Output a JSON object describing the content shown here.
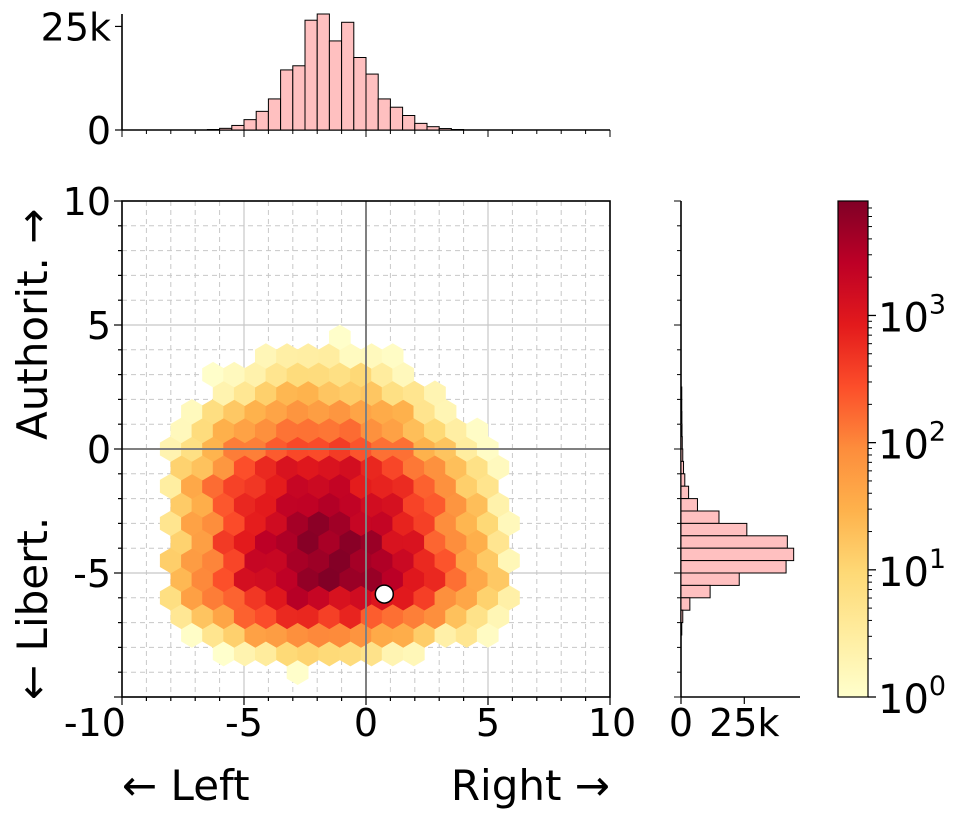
{
  "chart_data": {
    "type": "heatmap",
    "subtype": "hexbin-with-marginal-histograms",
    "xlabel_left": "← Left",
    "xlabel_right": "Right →",
    "ylabel_bottom": "← Libert.",
    "ylabel_top": "Authorit. →",
    "xlim": [
      -10,
      10
    ],
    "ylim": [
      -10,
      10
    ],
    "x_ticks": [
      {
        "value": -10,
        "label": "-10"
      },
      {
        "value": -5,
        "label": "-5"
      },
      {
        "value": 0,
        "label": "0"
      },
      {
        "value": 5,
        "label": "5"
      },
      {
        "value": 10,
        "label": "10"
      }
    ],
    "y_ticks": [
      {
        "value": -5,
        "label": "-5"
      },
      {
        "value": 0,
        "label": "0"
      },
      {
        "value": 5,
        "label": "5"
      },
      {
        "value": 10,
        "label": "10"
      }
    ],
    "grid": true,
    "quadrant_lines": true,
    "colormap": "YlOrRd",
    "color_scale": "log",
    "colorbar": {
      "min_exponent": 0,
      "max_exponent": 3.9,
      "ticks": [
        {
          "exp": 0,
          "base": "10",
          "power": "0"
        },
        {
          "exp": 1,
          "base": "10",
          "power": "1"
        },
        {
          "exp": 2,
          "base": "10",
          "power": "2"
        },
        {
          "exp": 3,
          "base": "10",
          "power": "3"
        }
      ]
    },
    "density": {
      "center": [
        -1.7,
        -4.6
      ],
      "log10_peak_count": 3.85,
      "spread_x": 2.2,
      "spread_y": 1.35,
      "tail_direction": [
        0.55,
        1.0
      ],
      "extent_x": [
        -8.0,
        6.0
      ],
      "extent_y": [
        -9.0,
        6.0
      ]
    },
    "marker": {
      "x": 0.75,
      "y": -5.85,
      "color": "#ffffff"
    },
    "top_histogram": {
      "ylim": [
        0,
        28000
      ],
      "y_ticks": [
        {
          "value": 0,
          "label": "0"
        },
        {
          "value": 25000,
          "label": "25k"
        }
      ],
      "bin_width": 0.5,
      "bins": [
        {
          "x": -6.5,
          "count": 120
        },
        {
          "x": -6.0,
          "count": 400
        },
        {
          "x": -5.5,
          "count": 1100
        },
        {
          "x": -5.0,
          "count": 2500
        },
        {
          "x": -4.5,
          "count": 4500
        },
        {
          "x": -4.0,
          "count": 7500
        },
        {
          "x": -3.5,
          "count": 14500
        },
        {
          "x": -3.0,
          "count": 15500
        },
        {
          "x": -2.5,
          "count": 26500
        },
        {
          "x": -2.0,
          "count": 28000
        },
        {
          "x": -1.5,
          "count": 21500
        },
        {
          "x": -1.0,
          "count": 26000
        },
        {
          "x": -0.5,
          "count": 17500
        },
        {
          "x": 0.0,
          "count": 13500
        },
        {
          "x": 0.5,
          "count": 7500
        },
        {
          "x": 1.0,
          "count": 5500
        },
        {
          "x": 1.5,
          "count": 3500
        },
        {
          "x": 2.0,
          "count": 1600
        },
        {
          "x": 2.5,
          "count": 800
        },
        {
          "x": 3.0,
          "count": 350
        },
        {
          "x": 3.5,
          "count": 120
        }
      ]
    },
    "right_histogram": {
      "xlim": [
        0,
        47000
      ],
      "x_ticks": [
        {
          "value": 0,
          "label": "0"
        },
        {
          "value": 25000,
          "label": "25k"
        }
      ],
      "bin_width": 0.5,
      "bins": [
        {
          "y": 2.0,
          "count": 300
        },
        {
          "y": 1.5,
          "count": 300
        },
        {
          "y": 1.0,
          "count": 350
        },
        {
          "y": 0.5,
          "count": 400
        },
        {
          "y": 0.0,
          "count": 500
        },
        {
          "y": -0.5,
          "count": 700
        },
        {
          "y": -1.0,
          "count": 1000
        },
        {
          "y": -1.5,
          "count": 1500
        },
        {
          "y": -2.0,
          "count": 3000
        },
        {
          "y": -2.5,
          "count": 6500
        },
        {
          "y": -3.0,
          "count": 15000
        },
        {
          "y": -3.5,
          "count": 26000
        },
        {
          "y": -4.0,
          "count": 42000
        },
        {
          "y": -4.5,
          "count": 44500
        },
        {
          "y": -5.0,
          "count": 41500
        },
        {
          "y": -5.5,
          "count": 23000
        },
        {
          "y": -6.0,
          "count": 11500
        },
        {
          "y": -6.5,
          "count": 3500
        },
        {
          "y": -7.0,
          "count": 700
        },
        {
          "y": -7.5,
          "count": 300
        }
      ]
    }
  },
  "colors": {
    "hist_fill": "#ffc0c0",
    "hist_edge": "#000000",
    "grid": "#c8c8c8",
    "axis_line": "#808080"
  }
}
